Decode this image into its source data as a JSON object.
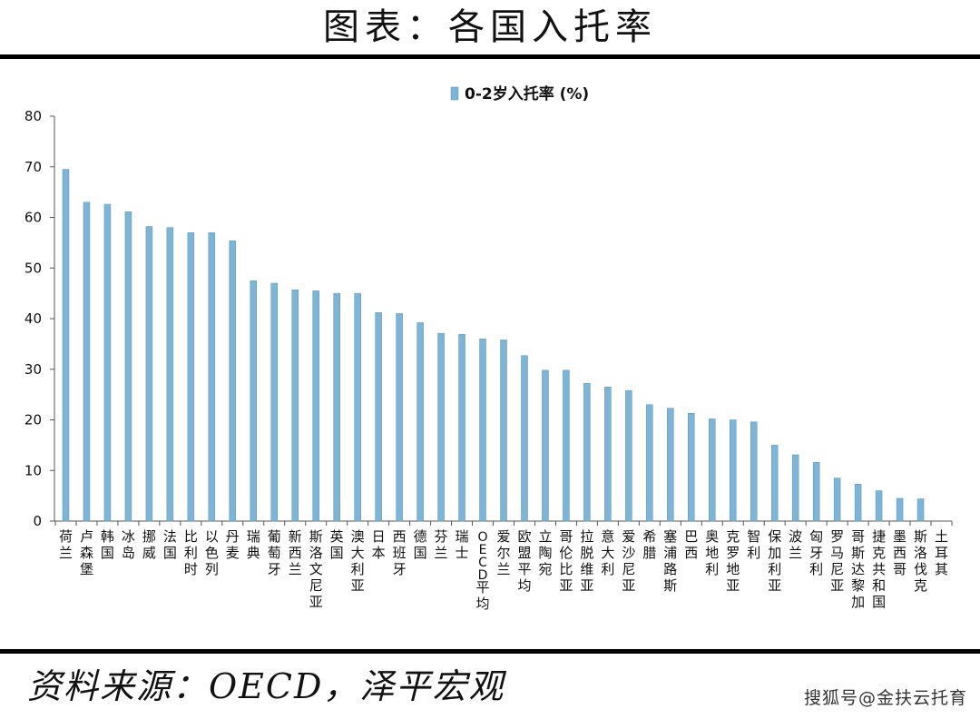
{
  "header": {
    "title": "图表：各国入托率"
  },
  "footer": {
    "source": "资料来源：OECD，泽平宏观",
    "watermark": "搜狐号@金扶云托育"
  },
  "chart_data": {
    "type": "bar",
    "title": "",
    "xlabel": "",
    "ylabel": "",
    "ylim": [
      0,
      80
    ],
    "yticks": [
      0,
      10,
      20,
      30,
      40,
      50,
      60,
      70,
      80
    ],
    "grid": false,
    "legend": "top-center",
    "bar_color": "#7eb4d6",
    "categories": [
      "荷兰",
      "卢森堡",
      "韩国",
      "冰岛",
      "挪威",
      "法国",
      "比利时",
      "以色列",
      "丹麦",
      "瑞典",
      "葡萄牙",
      "新西兰",
      "斯洛文尼亚",
      "英国",
      "澳大利亚",
      "日本",
      "西班牙",
      "德国",
      "芬兰",
      "瑞士",
      "OECD平均",
      "爱尔兰",
      "欧盟平均",
      "立陶宛",
      "哥伦比亚",
      "拉脱维亚",
      "意大利",
      "爱沙尼亚",
      "希腊",
      "塞浦路斯",
      "巴西",
      "奥地利",
      "克罗地亚",
      "智利",
      "保加利亚",
      "波兰",
      "匈牙利",
      "罗马尼亚",
      "哥斯达黎加",
      "捷克共和国",
      "墨西哥",
      "斯洛伐克",
      "土耳其"
    ],
    "series": [
      {
        "name": "0-2岁入托率 (%)",
        "values": [
          69.5,
          63,
          62.6,
          61.1,
          58.2,
          58,
          57,
          57,
          55.4,
          47.5,
          47,
          45.7,
          45.5,
          45,
          45,
          41.2,
          41,
          39.2,
          37.1,
          36.9,
          36,
          35.8,
          32.7,
          29.8,
          29.8,
          27.2,
          26.5,
          25.8,
          23,
          22.3,
          21.3,
          20.2,
          20,
          19.6,
          15,
          13.1,
          11.6,
          8.5,
          7.3,
          6,
          4.5,
          4.4,
          0
        ]
      }
    ]
  }
}
